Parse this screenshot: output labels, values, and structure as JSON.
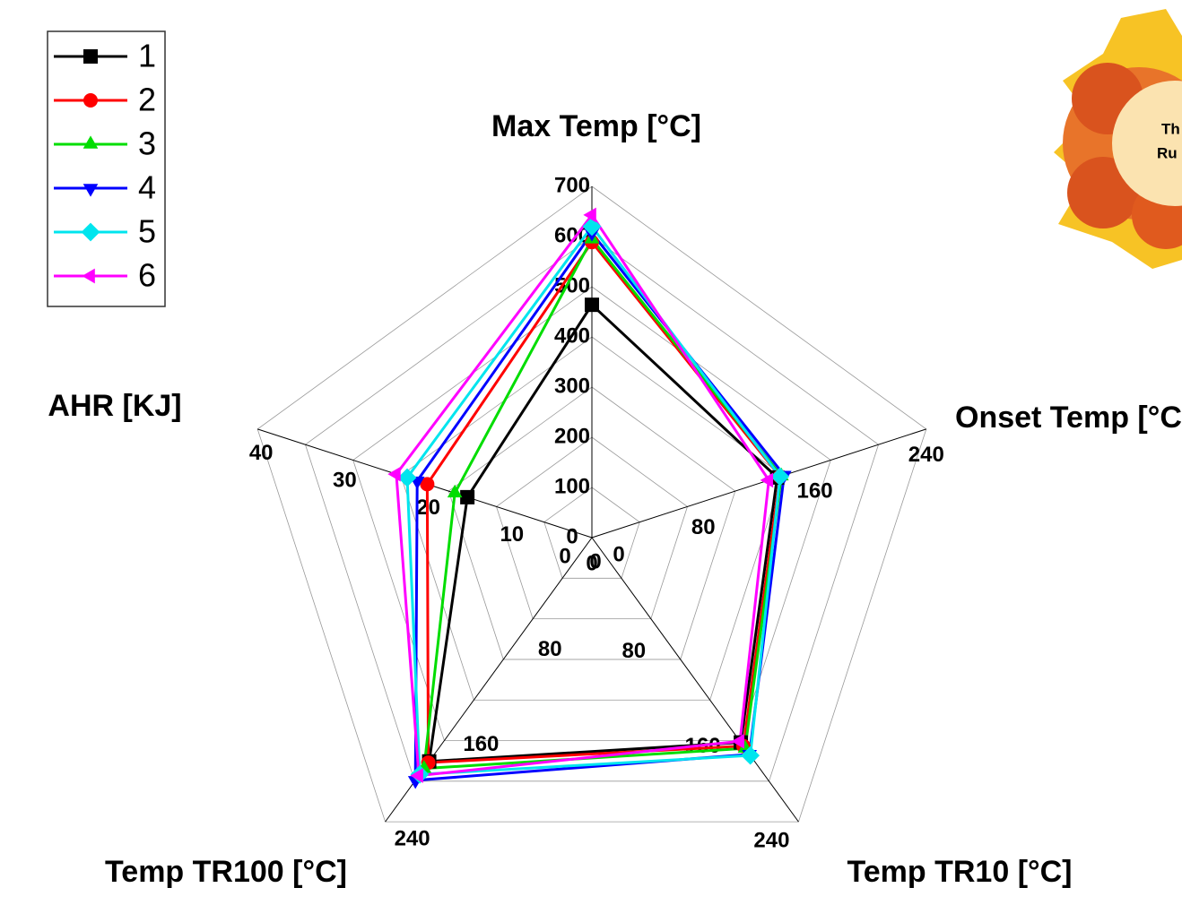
{
  "chart_data": {
    "type": "radar",
    "axes": [
      {
        "name": "Max Temp [°C]",
        "lim": [
          0,
          700
        ],
        "ticks": [
          0,
          100,
          200,
          300,
          400,
          500,
          600,
          700
        ]
      },
      {
        "name": "Onset Temp [°C",
        "lim": [
          0,
          240
        ],
        "ticks": [
          0,
          80,
          160,
          240
        ]
      },
      {
        "name": "Temp TR10 [°C]",
        "lim": [
          0,
          240
        ],
        "ticks": [
          0,
          80,
          160,
          240
        ]
      },
      {
        "name": "Temp TR100 [°C]",
        "lim": [
          0,
          240
        ],
        "ticks": [
          0,
          80,
          160,
          240
        ]
      },
      {
        "name": "AHR [KJ]",
        "lim": [
          0,
          40
        ],
        "ticks": [
          0,
          10,
          20,
          30,
          40
        ]
      }
    ],
    "series": [
      {
        "name": "1",
        "color": "#000000",
        "marker": "square",
        "values": [
          464,
          133,
          173,
          189,
          14.9
        ]
      },
      {
        "name": "2",
        "color": "#ff0000",
        "marker": "circle",
        "values": [
          589,
          135,
          176,
          190,
          19.7
        ]
      },
      {
        "name": "3",
        "color": "#00dd00",
        "marker": "triangle-up",
        "values": [
          595,
          136,
          178,
          195,
          16.4
        ]
      },
      {
        "name": "4",
        "color": "#0000ff",
        "marker": "triangle-down",
        "values": [
          607,
          138,
          183,
          205,
          20.9
        ]
      },
      {
        "name": "5",
        "color": "#00e5ee",
        "marker": "diamond",
        "values": [
          620,
          135,
          184,
          200,
          22.1
        ]
      },
      {
        "name": "6",
        "color": "#ff00ff",
        "marker": "triangle-left",
        "values": [
          643,
          127,
          172,
          201,
          23.4
        ]
      }
    ],
    "grid": true
  },
  "corner_image": {
    "lines": [
      "Th",
      "Ru"
    ]
  }
}
